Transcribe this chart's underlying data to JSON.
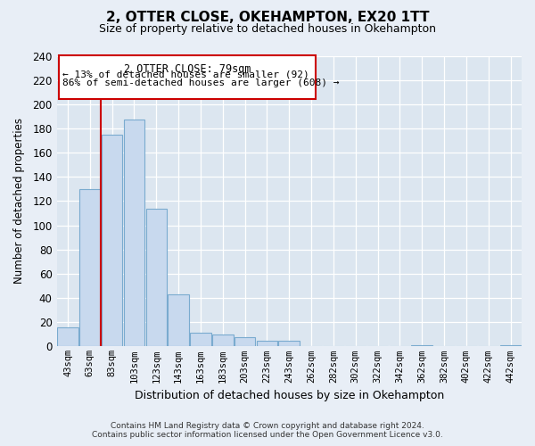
{
  "title": "2, OTTER CLOSE, OKEHAMPTON, EX20 1TT",
  "subtitle": "Size of property relative to detached houses in Okehampton",
  "xlabel": "Distribution of detached houses by size in Okehampton",
  "ylabel": "Number of detached properties",
  "bar_labels": [
    "43sqm",
    "63sqm",
    "83sqm",
    "103sqm",
    "123sqm",
    "143sqm",
    "163sqm",
    "183sqm",
    "203sqm",
    "223sqm",
    "243sqm",
    "262sqm",
    "282sqm",
    "302sqm",
    "322sqm",
    "342sqm",
    "362sqm",
    "382sqm",
    "402sqm",
    "422sqm",
    "442sqm"
  ],
  "bar_values": [
    16,
    130,
    175,
    187,
    114,
    43,
    11,
    10,
    8,
    5,
    5,
    0,
    0,
    0,
    0,
    0,
    1,
    0,
    0,
    0,
    1
  ],
  "bar_color": "#c8d9ee",
  "bar_edge_color": "#7aabcf",
  "vline_color": "#cc0000",
  "annotation_title": "2 OTTER CLOSE: 79sqm",
  "annotation_line1": "← 13% of detached houses are smaller (92)",
  "annotation_line2": "86% of semi-detached houses are larger (608) →",
  "box_edge_color": "#cc0000",
  "ylim": [
    0,
    240
  ],
  "yticks": [
    0,
    20,
    40,
    60,
    80,
    100,
    120,
    140,
    160,
    180,
    200,
    220,
    240
  ],
  "footer_line1": "Contains HM Land Registry data © Crown copyright and database right 2024.",
  "footer_line2": "Contains public sector information licensed under the Open Government Licence v3.0.",
  "bg_color": "#e8eef6",
  "plot_bg_color": "#dce6f0"
}
